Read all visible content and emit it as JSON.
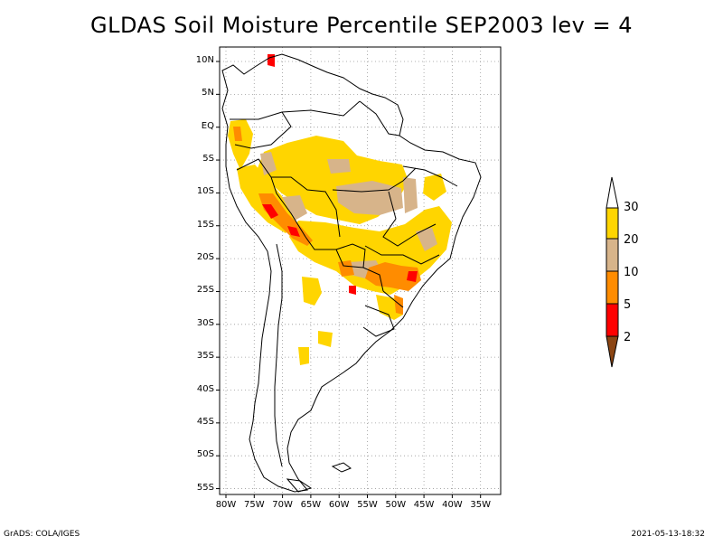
{
  "title": "GLDAS Soil Moisture Percentile SEP2003 lev = 4",
  "map": {
    "lat_labels": [
      "10N",
      "5N",
      "EQ",
      "5S",
      "10S",
      "15S",
      "20S",
      "25S",
      "30S",
      "35S",
      "40S",
      "45S",
      "50S",
      "55S"
    ],
    "lon_labels": [
      "80W",
      "75W",
      "70W",
      "65W",
      "60W",
      "55W",
      "50W",
      "45W",
      "40W",
      "35W"
    ],
    "grid_lines": "dotted"
  },
  "legend": {
    "labels": [
      "30",
      "20",
      "10",
      "5",
      "2"
    ],
    "colors": {
      "above_30": "#ffffff",
      "20_30": "#ffd500",
      "10_20": "#d7b48a",
      "5_10": "#ff8c00",
      "2_5": "#ff0000",
      "below_2": "#8b4513"
    }
  },
  "footer": {
    "left": "GrADS: COLA/IGES",
    "right": "2021-05-13-18:32"
  }
}
